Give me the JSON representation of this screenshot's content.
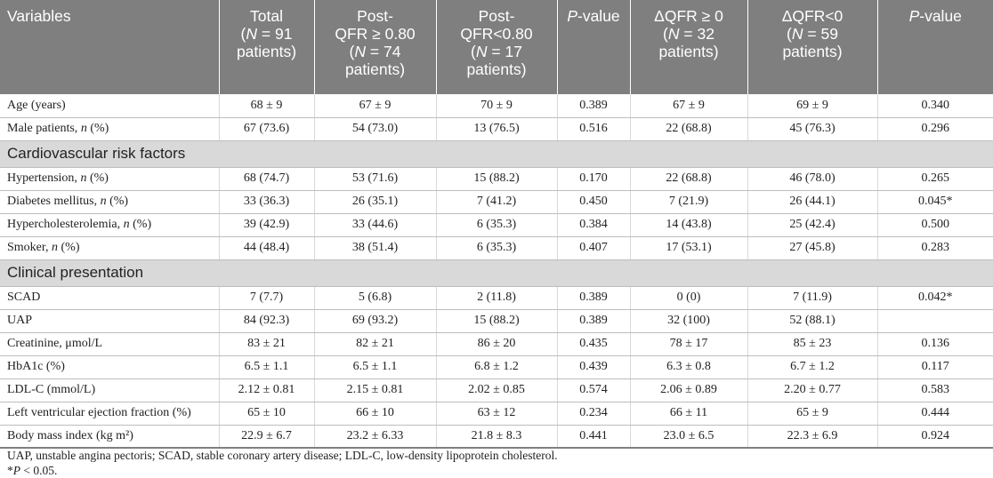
{
  "headers": [
    [
      "Variables"
    ],
    [
      "Total",
      "(N = 91",
      "patients)"
    ],
    [
      "Post-",
      "QFR ≥ 0.80",
      "(N = 74",
      "patients)"
    ],
    [
      "Post-",
      "QFR<0.80",
      "(N = 17",
      "patients)"
    ],
    [
      "P-value"
    ],
    [
      "ΔQFR ≥ 0",
      "(N = 32",
      "patients)"
    ],
    [
      "ΔQFR<0",
      "(N = 59",
      "patients)"
    ],
    [
      "P-value"
    ]
  ],
  "rows": [
    {
      "type": "data",
      "cells": [
        "Age (years)",
        "68 ± 9",
        "67 ± 9",
        "70 ± 9",
        "0.389",
        "67 ± 9",
        "69 ± 9",
        "0.340"
      ]
    },
    {
      "type": "data",
      "cells": [
        "Male patients, n (%)",
        "67 (73.6)",
        "54 (73.0)",
        "13 (76.5)",
        "0.516",
        "22 (68.8)",
        "45 (76.3)",
        "0.296"
      ]
    },
    {
      "type": "section",
      "label": "Cardiovascular risk factors"
    },
    {
      "type": "data",
      "cells": [
        "Hypertension, n (%)",
        "68 (74.7)",
        "53 (71.6)",
        "15 (88.2)",
        "0.170",
        "22 (68.8)",
        "46 (78.0)",
        "0.265"
      ]
    },
    {
      "type": "data",
      "cells": [
        "Diabetes mellitus, n (%)",
        "33 (36.3)",
        "26 (35.1)",
        "7 (41.2)",
        "0.450",
        "7 (21.9)",
        "26 (44.1)",
        "0.045*"
      ]
    },
    {
      "type": "data",
      "cells": [
        "Hypercholesterolemia, n (%)",
        "39 (42.9)",
        "33 (44.6)",
        "6 (35.3)",
        "0.384",
        "14 (43.8)",
        "25 (42.4)",
        "0.500"
      ]
    },
    {
      "type": "data",
      "cells": [
        "Smoker, n (%)",
        "44 (48.4)",
        "38 (51.4)",
        "6 (35.3)",
        "0.407",
        "17 (53.1)",
        "27 (45.8)",
        "0.283"
      ]
    },
    {
      "type": "section",
      "label": "Clinical presentation"
    },
    {
      "type": "data",
      "cells": [
        "SCAD",
        "7 (7.7)",
        "5 (6.8)",
        "2 (11.8)",
        "0.389",
        "0 (0)",
        "7 (11.9)",
        "0.042*"
      ]
    },
    {
      "type": "data",
      "cells": [
        "UAP",
        "84 (92.3)",
        "69 (93.2)",
        "15 (88.2)",
        "0.389",
        "32 (100)",
        "52 (88.1)",
        ""
      ]
    },
    {
      "type": "data",
      "cells": [
        "Creatinine, μmol/L",
        "83 ± 21",
        "82 ± 21",
        "86 ± 20",
        "0.435",
        "78 ± 17",
        "85 ± 23",
        "0.136"
      ]
    },
    {
      "type": "data",
      "cells": [
        "HbA1c (%)",
        "6.5 ± 1.1",
        "6.5 ± 1.1",
        "6.8 ± 1.2",
        "0.439",
        "6.3 ± 0.8",
        "6.7 ± 1.2",
        "0.117"
      ]
    },
    {
      "type": "data",
      "cells": [
        "LDL-C (mmol/L)",
        "2.12 ± 0.81",
        "2.15 ± 0.81",
        "2.02 ± 0.85",
        "0.574",
        "2.06 ± 0.89",
        "2.20 ± 0.77",
        "0.583"
      ]
    },
    {
      "type": "data",
      "cells": [
        "Left ventricular ejection fraction (%)",
        "65 ± 10",
        "66 ± 10",
        "63 ± 12",
        "0.234",
        "66 ± 11",
        "65 ± 9",
        "0.444"
      ]
    },
    {
      "type": "data",
      "cells": [
        "Body mass index (kg m²)",
        "22.9 ± 6.7",
        "23.2 ± 6.33",
        "21.8 ± 8.3",
        "0.441",
        "23.0 ± 6.5",
        "22.3 ± 6.9",
        "0.924"
      ]
    }
  ],
  "notes": [
    "UAP, unstable angina pectoris; SCAD, stable coronary artery disease; LDL-C, low-density lipoprotein cholesterol.",
    "*P < 0.05."
  ]
}
